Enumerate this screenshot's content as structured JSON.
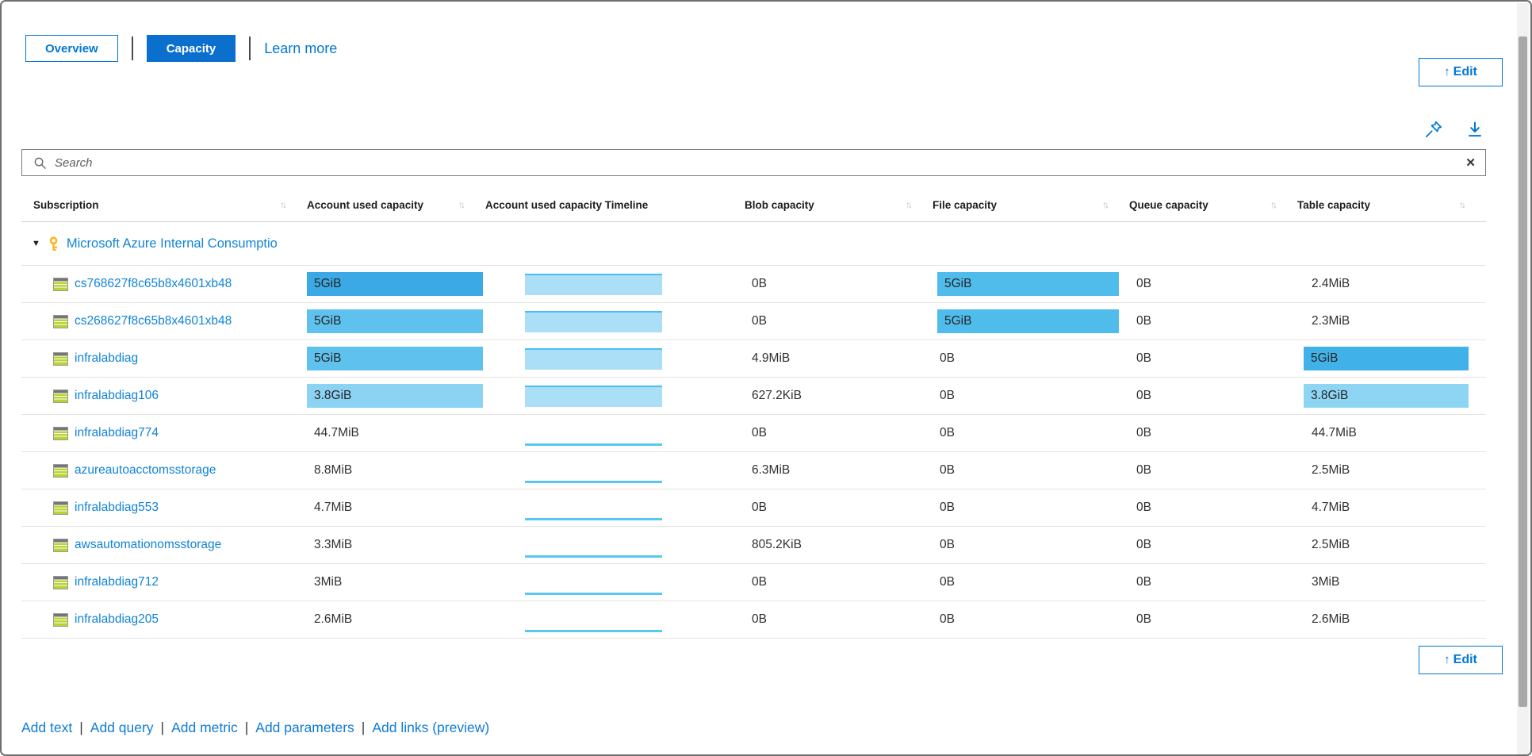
{
  "tabs": {
    "overview": "Overview",
    "capacity": "Capacity"
  },
  "learn_more_label": "Learn more",
  "toolbar": {
    "edit_label": "Edit",
    "edit_icon": "↑"
  },
  "icons": {
    "pin": "pushpin",
    "download": "↓",
    "search": "⌕",
    "clear": "✕",
    "sort": "↑↓",
    "expand_caret": "▼",
    "group_key": "key",
    "storage_account": "storage-table"
  },
  "search": {
    "placeholder": "Search",
    "value": ""
  },
  "colors": {
    "accent": "#0078d4",
    "capacity_tab_bg": "#0b6fce",
    "bar_dark": "#3aa9e5",
    "bar_medium": "#5ec1ee",
    "bar_light": "#8bd2f3",
    "bar_file": "#4fbcec",
    "bar_table_dark": "#41b2e9",
    "bar_table_light": "#8ed5f4",
    "timeline_fill": "#abdff8",
    "timeline_top": "#47c0f1",
    "timeline_line": "#58c7f2"
  },
  "table": {
    "columns": [
      {
        "label": "Subscription",
        "sortable": true
      },
      {
        "label": "Account used capacity",
        "sortable": true
      },
      {
        "label": "Account used capacity Timeline",
        "sortable": false
      },
      {
        "label": "Blob capacity",
        "sortable": true
      },
      {
        "label": "File capacity",
        "sortable": true
      },
      {
        "label": "Queue capacity",
        "sortable": true
      },
      {
        "label": "Table capacity",
        "sortable": true
      }
    ],
    "group": {
      "label": "Microsoft Azure Internal Consumptio",
      "expanded": true
    },
    "rows": [
      {
        "name": "cs768627f8c65b8x4601xb48",
        "account": {
          "text": "5GiB",
          "bar": "#3aa9e5"
        },
        "timeline": "area",
        "blob": "0B",
        "file": {
          "text": "5GiB",
          "bar": "#4fbcec"
        },
        "queue": "0B",
        "table": {
          "text": "2.4MiB"
        }
      },
      {
        "name": "cs268627f8c65b8x4601xb48",
        "account": {
          "text": "5GiB",
          "bar": "#5ec1ee"
        },
        "timeline": "area",
        "blob": "0B",
        "file": {
          "text": "5GiB",
          "bar": "#4fbcec"
        },
        "queue": "0B",
        "table": {
          "text": "2.3MiB"
        }
      },
      {
        "name": "infralabdiag",
        "account": {
          "text": "5GiB",
          "bar": "#5ec1ee"
        },
        "timeline": "area",
        "blob": "4.9MiB",
        "file": {
          "text": "0B"
        },
        "queue": "0B",
        "table": {
          "text": "5GiB",
          "bar": "#41b2e9"
        }
      },
      {
        "name": "infralabdiag106",
        "account": {
          "text": "3.8GiB",
          "bar": "#8bd2f3"
        },
        "timeline": "area",
        "blob": "627.2KiB",
        "file": {
          "text": "0B"
        },
        "queue": "0B",
        "table": {
          "text": "3.8GiB",
          "bar": "#8ed5f4"
        }
      },
      {
        "name": "infralabdiag774",
        "account": {
          "text": "44.7MiB"
        },
        "timeline": "line",
        "blob": "0B",
        "file": {
          "text": "0B"
        },
        "queue": "0B",
        "table": {
          "text": "44.7MiB"
        }
      },
      {
        "name": "azureautoacctomsstorage",
        "account": {
          "text": "8.8MiB"
        },
        "timeline": "line",
        "blob": "6.3MiB",
        "file": {
          "text": "0B"
        },
        "queue": "0B",
        "table": {
          "text": "2.5MiB"
        }
      },
      {
        "name": "infralabdiag553",
        "account": {
          "text": "4.7MiB"
        },
        "timeline": "line",
        "blob": "0B",
        "file": {
          "text": "0B"
        },
        "queue": "0B",
        "table": {
          "text": "4.7MiB"
        }
      },
      {
        "name": "awsautomationomsstorage",
        "account": {
          "text": "3.3MiB"
        },
        "timeline": "line",
        "blob": "805.2KiB",
        "file": {
          "text": "0B"
        },
        "queue": "0B",
        "table": {
          "text": "2.5MiB"
        }
      },
      {
        "name": "infralabdiag712",
        "account": {
          "text": "3MiB"
        },
        "timeline": "line",
        "blob": "0B",
        "file": {
          "text": "0B"
        },
        "queue": "0B",
        "table": {
          "text": "3MiB"
        }
      },
      {
        "name": "infralabdiag205",
        "account": {
          "text": "2.6MiB"
        },
        "timeline": "line",
        "blob": "0B",
        "file": {
          "text": "0B"
        },
        "queue": "0B",
        "table": {
          "text": "2.6MiB"
        }
      }
    ]
  },
  "footer": {
    "edit_label": "Edit",
    "add_links": [
      "Add text",
      "Add query",
      "Add metric",
      "Add parameters",
      "Add links (preview)"
    ]
  }
}
